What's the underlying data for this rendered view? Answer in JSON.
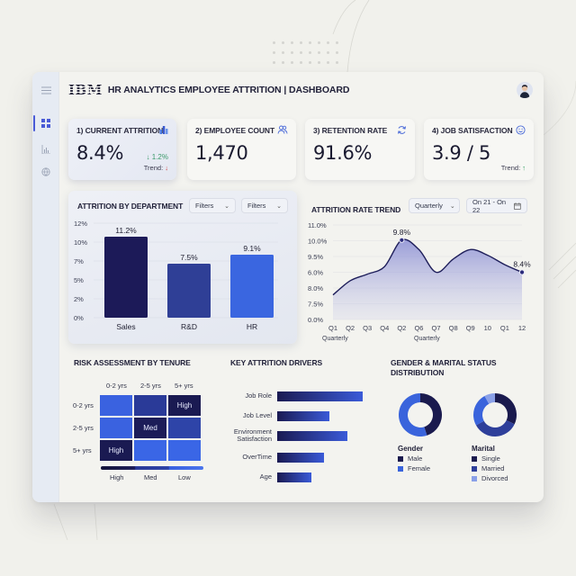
{
  "header": {
    "logo": "IBM",
    "title": "HR ANALYTICS EMPLOYEE ATTRITION | DASHBOARD"
  },
  "sidebar": {
    "items": [
      {
        "name": "menu",
        "icon": "hamburger-icon"
      },
      {
        "name": "dashboard",
        "icon": "grid-icon",
        "active": true
      },
      {
        "name": "analytics",
        "icon": "bar-chart-icon"
      },
      {
        "name": "settings",
        "icon": "globe-icon"
      }
    ]
  },
  "kpis": [
    {
      "title": "1) CURRENT ATTRITION",
      "value": "8.4%",
      "icon": "bar-chart-icon",
      "delta": "↓ 1.2%",
      "trend_label": "Trend:",
      "trend_arrow": "↓"
    },
    {
      "title": "2) EMPLOYEE COUNT",
      "value": "1,470",
      "icon": "users-icon"
    },
    {
      "title": "3) RETENTION RATE",
      "value": "91.6%",
      "icon": "refresh-icon"
    },
    {
      "title": "4) JOB SATISFACTION",
      "value": "3.9 / 5",
      "icon": "smiley-icon",
      "trend_label": "Trend:",
      "trend_arrow": "↑"
    }
  ],
  "department_panel": {
    "title": "ATTRITION BY DEPARTMENT",
    "filter1": "Filters",
    "filter2": "Filters"
  },
  "trend_panel": {
    "title": "ATTRITION RATE TREND",
    "period_select": "Quarterly",
    "date_range": "On 21 - On 22",
    "x_sub_labels": [
      "Quarterly",
      "Quarterly"
    ]
  },
  "risk_panel": {
    "title": "RISK ASSESSMENT BY TENURE",
    "cols": [
      "0-2 yrs",
      "2-5 yrs",
      "5+ yrs"
    ],
    "rows": [
      "0-2 yrs",
      "2-5 yrs",
      "5+ yrs"
    ],
    "cells": [
      [
        {
          "label": "",
          "color": "#3a62e0"
        },
        {
          "label": "",
          "color": "#2a3a98"
        },
        {
          "label": "High",
          "color": "#1a1a52"
        }
      ],
      [
        {
          "label": "",
          "color": "#3a62e0"
        },
        {
          "label": "Med",
          "color": "#1c1c58"
        },
        {
          "label": "",
          "color": "#2e44a8"
        }
      ],
      [
        {
          "label": "High",
          "color": "#1a1a52"
        },
        {
          "label": "",
          "color": "#3a66e6"
        },
        {
          "label": "",
          "color": "#3a66e6"
        }
      ]
    ],
    "scale": [
      "High",
      "Med",
      "Low"
    ]
  },
  "drivers_panel": {
    "title": "KEY ATTRITION DRIVERS",
    "items": [
      {
        "label": "Job Role",
        "value": 95
      },
      {
        "label": "Job Level",
        "value": 58
      },
      {
        "label": "Environment Satisfaction",
        "value": 78
      },
      {
        "label": "OverTime",
        "value": 52
      },
      {
        "label": "Age",
        "value": 38
      }
    ]
  },
  "distribution_panel": {
    "title": "GENDER & MARITAL STATUS DISTRIBUTION",
    "gender": {
      "title": "Gender",
      "segments": [
        {
          "label": "Male",
          "value": 45,
          "color": "#1a1a4e"
        },
        {
          "label": "Female",
          "value": 55,
          "color": "#3a64dc"
        }
      ]
    },
    "marital": {
      "title": "Marital",
      "segments": [
        {
          "label": "Single",
          "value": 32,
          "color": "#1a1a4e"
        },
        {
          "label": "Married",
          "value": 35,
          "color": "#2e3f9a"
        },
        {
          "label": "Divorced",
          "value": 8,
          "color": "#8aa0e8"
        }
      ]
    }
  },
  "chart_data": [
    {
      "type": "bar",
      "title": "ATTRITION BY DEPARTMENT",
      "categories": [
        "Sales",
        "R&D",
        "HR"
      ],
      "values": [
        11.2,
        7.5,
        9.1
      ],
      "data_labels": [
        "11.2%",
        "7.5%",
        "9.1%"
      ],
      "colors": [
        "#1c1a58",
        "#2f3f96",
        "#3a66e0"
      ],
      "y_ticks": [
        "12%",
        "10%",
        "7%",
        "5%",
        "2%",
        "0%"
      ],
      "ylim": [
        0,
        12
      ],
      "grid": true
    },
    {
      "type": "area",
      "title": "ATTRITION RATE TREND",
      "x": [
        "Q1",
        "Q2",
        "Q3",
        "Q4",
        "Q2",
        "Q6",
        "Q7",
        "Q8",
        "Q9",
        "10",
        "Q1",
        "12"
      ],
      "y_ticks": [
        "11.0%",
        "10.0%",
        "9.5%",
        "6.0%",
        "8.0%",
        "7.5%",
        "0.0%"
      ],
      "values_pos": [
        0.26,
        0.41,
        0.48,
        0.56,
        0.84,
        0.74,
        0.5,
        0.64,
        0.74,
        0.68,
        0.58,
        0.5
      ],
      "annotations": [
        {
          "index": 4,
          "label": "9.8%"
        },
        {
          "index": 11,
          "label": "8.4%"
        }
      ],
      "grid": true
    },
    {
      "type": "heatmap",
      "title": "RISK ASSESSMENT BY TENURE",
      "x": [
        "0-2 yrs",
        "2-5 yrs",
        "5+ yrs"
      ],
      "y": [
        "0-2 yrs",
        "2-5 yrs",
        "5+ yrs"
      ],
      "labels": [
        [
          "",
          "",
          "High"
        ],
        [
          "",
          "Med",
          ""
        ],
        [
          "High",
          "",
          ""
        ]
      ],
      "scale": [
        "High",
        "Med",
        "Low"
      ]
    },
    {
      "type": "bar",
      "orientation": "horizontal",
      "title": "KEY ATTRITION DRIVERS",
      "categories": [
        "Job Role",
        "Job Level",
        "Environment Satisfaction",
        "OverTime",
        "Age"
      ],
      "values": [
        95,
        58,
        78,
        52,
        38
      ]
    },
    {
      "type": "pie",
      "title": "Gender",
      "categories": [
        "Male",
        "Female"
      ],
      "values": [
        45,
        55
      ]
    },
    {
      "type": "pie",
      "title": "Marital",
      "categories": [
        "Single",
        "Married",
        "Divorced"
      ],
      "values": [
        32,
        35,
        8
      ]
    }
  ]
}
